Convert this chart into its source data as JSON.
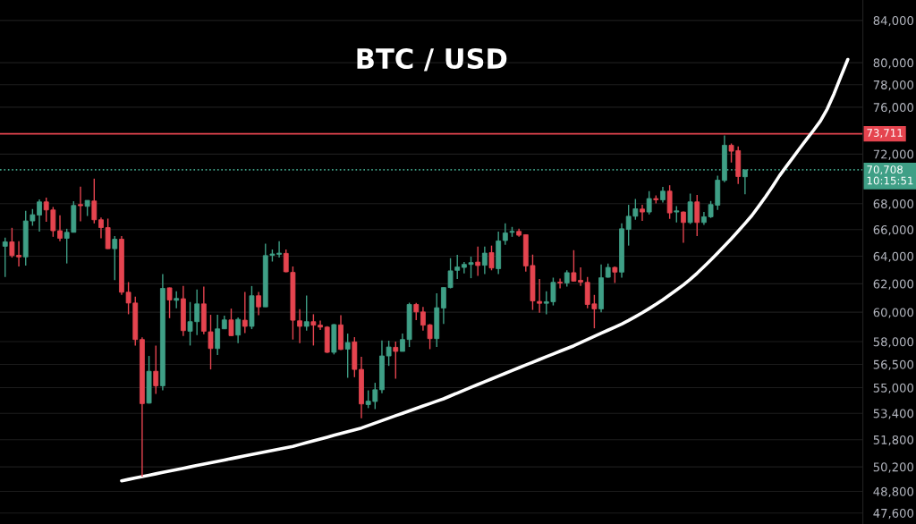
{
  "chart_data": {
    "type": "candlestick",
    "title": "BTC / USD",
    "categories": [
      null,
      null,
      null,
      null,
      null,
      null,
      null,
      null,
      null,
      null,
      null,
      null,
      null,
      null,
      null,
      null,
      null,
      null,
      null,
      null,
      null,
      null,
      null,
      null,
      null,
      null,
      null,
      null,
      null,
      null,
      null,
      null,
      null,
      null,
      null,
      null,
      null,
      null,
      null,
      null,
      null,
      null,
      null,
      null,
      null,
      null,
      null,
      null,
      null,
      null,
      null,
      null,
      null,
      null,
      null,
      null,
      null,
      null,
      null,
      null,
      null,
      null,
      null,
      null,
      null,
      null,
      null,
      null,
      null,
      null,
      null,
      null,
      null,
      null,
      null,
      null,
      null,
      null,
      null,
      null,
      null,
      null,
      null,
      null,
      null,
      null,
      null,
      null,
      null,
      null,
      null,
      null,
      null,
      null,
      null,
      null,
      null,
      null,
      null,
      null,
      null,
      null,
      null,
      null,
      null,
      null,
      null,
      null,
      null,
      null,
      null,
      null,
      null,
      null,
      null,
      null,
      null,
      null,
      null,
      null,
      null,
      null,
      null,
      null
    ],
    "ohlc": [
      [
        64740,
        65390,
        62490,
        65070
      ],
      [
        65070,
        66130,
        63900,
        64050
      ],
      [
        64070,
        65120,
        63250,
        63950
      ],
      [
        63950,
        67440,
        63320,
        66660
      ],
      [
        66660,
        67580,
        66290,
        67140
      ],
      [
        67110,
        68330,
        65840,
        68140
      ],
      [
        68140,
        68470,
        66590,
        67510
      ],
      [
        67510,
        67740,
        65450,
        65910
      ],
      [
        65910,
        67090,
        65120,
        65340
      ],
      [
        65340,
        66060,
        63470,
        65790
      ],
      [
        65790,
        68190,
        65790,
        67860
      ],
      [
        67930,
        69340,
        66630,
        67840
      ],
      [
        67790,
        68260,
        67040,
        68260
      ],
      [
        68210,
        69990,
        66470,
        66750
      ],
      [
        66750,
        66930,
        65340,
        66150
      ],
      [
        66150,
        66840,
        64540,
        64560
      ],
      [
        64560,
        65500,
        62270,
        65270
      ],
      [
        65270,
        65500,
        61210,
        61400
      ],
      [
        61400,
        62120,
        59860,
        60640
      ],
      [
        60640,
        61080,
        57740,
        58140
      ],
      [
        58140,
        58280,
        49640,
        54000
      ],
      [
        54030,
        57050,
        54000,
        56050
      ],
      [
        56050,
        57740,
        54610,
        55120
      ],
      [
        55120,
        62700,
        54830,
        61670
      ],
      [
        61710,
        61730,
        59590,
        60850
      ],
      [
        60830,
        61460,
        60270,
        60960
      ],
      [
        60940,
        61840,
        58380,
        58740
      ],
      [
        58700,
        60710,
        57740,
        59350
      ],
      [
        59350,
        61590,
        58440,
        60580
      ],
      [
        60580,
        61800,
        58500,
        58700
      ],
      [
        58660,
        59820,
        56170,
        57540
      ],
      [
        57540,
        59820,
        57110,
        58860
      ],
      [
        58860,
        59760,
        58840,
        59470
      ],
      [
        59470,
        60250,
        58380,
        58400
      ],
      [
        58440,
        59640,
        57900,
        59510
      ],
      [
        59450,
        61420,
        58580,
        59030
      ],
      [
        59030,
        61840,
        58840,
        61150
      ],
      [
        61150,
        61420,
        59800,
        60370
      ],
      [
        60370,
        64940,
        60370,
        64050
      ],
      [
        64070,
        64500,
        63610,
        64170
      ],
      [
        64140,
        65120,
        63900,
        64230
      ],
      [
        64210,
        64500,
        62820,
        62860
      ],
      [
        62820,
        63250,
        58140,
        59450
      ],
      [
        59410,
        60210,
        57900,
        59030
      ],
      [
        59030,
        61170,
        58740,
        59350
      ],
      [
        59350,
        59860,
        57740,
        59110
      ],
      [
        59110,
        59430,
        58780,
        58980
      ],
      [
        58980,
        59050,
        57250,
        57290
      ],
      [
        57290,
        59190,
        57150,
        59150
      ],
      [
        59130,
        59800,
        57440,
        57480
      ],
      [
        57500,
        58540,
        55630,
        57940
      ],
      [
        57980,
        58300,
        55670,
        56170
      ],
      [
        56170,
        56990,
        53100,
        53980
      ],
      [
        53940,
        54830,
        53720,
        54150
      ],
      [
        54130,
        55310,
        53660,
        54870
      ],
      [
        54870,
        58080,
        54650,
        57050
      ],
      [
        57050,
        58060,
        56400,
        57640
      ],
      [
        57620,
        58000,
        55570,
        57350
      ],
      [
        57350,
        58540,
        57350,
        58140
      ],
      [
        58140,
        60660,
        57640,
        60540
      ],
      [
        60540,
        60640,
        59450,
        60020
      ],
      [
        60020,
        60370,
        58740,
        59110
      ],
      [
        59130,
        59190,
        57500,
        58200
      ],
      [
        58200,
        61320,
        57640,
        60310
      ],
      [
        60290,
        61730,
        59190,
        61730
      ],
      [
        61730,
        63860,
        61670,
        62930
      ],
      [
        62970,
        64100,
        62340,
        63210
      ],
      [
        63180,
        63570,
        62750,
        63400
      ],
      [
        63400,
        63970,
        62400,
        63530
      ],
      [
        63570,
        64720,
        62570,
        63320
      ],
      [
        63340,
        64720,
        62700,
        64230
      ],
      [
        64270,
        64790,
        62970,
        63140
      ],
      [
        63090,
        65840,
        62700,
        65140
      ],
      [
        65170,
        66470,
        64850,
        65740
      ],
      [
        65790,
        66200,
        65450,
        65860
      ],
      [
        65860,
        66060,
        65450,
        65570
      ],
      [
        65610,
        65610,
        62880,
        63290
      ],
      [
        63320,
        64120,
        60160,
        60790
      ],
      [
        60750,
        62340,
        59960,
        60620
      ],
      [
        60620,
        61460,
        59860,
        60730
      ],
      [
        60730,
        62440,
        60470,
        62100
      ],
      [
        62120,
        62380,
        61670,
        62060
      ],
      [
        62060,
        62970,
        61800,
        62800
      ],
      [
        62800,
        64450,
        62160,
        62190
      ],
      [
        62250,
        63180,
        61840,
        62120
      ],
      [
        62100,
        62490,
        60270,
        60540
      ],
      [
        60580,
        61210,
        58900,
        60230
      ],
      [
        60230,
        63400,
        60000,
        62430
      ],
      [
        62470,
        63470,
        62440,
        63180
      ],
      [
        63180,
        63250,
        62060,
        62840
      ],
      [
        62840,
        66470,
        62440,
        66060
      ],
      [
        66010,
        67910,
        64790,
        67020
      ],
      [
        67020,
        68370,
        66750,
        67600
      ],
      [
        67580,
        67910,
        66660,
        67350
      ],
      [
        67350,
        68990,
        67160,
        68400
      ],
      [
        68400,
        68650,
        68020,
        68300
      ],
      [
        68300,
        69320,
        68090,
        68990
      ],
      [
        68990,
        69460,
        66820,
        67280
      ],
      [
        67350,
        67810,
        66540,
        67440
      ],
      [
        67350,
        67390,
        65010,
        66540
      ],
      [
        66540,
        68790,
        66420,
        68140
      ],
      [
        68140,
        68680,
        65500,
        66540
      ],
      [
        66540,
        67350,
        66350,
        66980
      ],
      [
        66980,
        68210,
        66890,
        67930
      ],
      [
        67880,
        70230,
        67510,
        69870
      ],
      [
        69850,
        73570,
        69700,
        72740
      ],
      [
        72740,
        72890,
        71310,
        72240
      ],
      [
        72290,
        72640,
        69560,
        70160
      ],
      [
        70140,
        70710,
        68750,
        70708
      ],
      null,
      null,
      null,
      null,
      null,
      null,
      null,
      null,
      null,
      null,
      null,
      null,
      null,
      null,
      null
    ],
    "colors": [
      "#3f9f86",
      "#e5444f",
      "#e5444f",
      "#3f9f86",
      "#3f9f86",
      "#3f9f86",
      "#e5444f",
      "#e5444f",
      "#e5444f",
      "#3f9f86",
      "#3f9f86",
      "#e5444f",
      "#3f9f86",
      "#e5444f",
      "#e5444f",
      "#e5444f",
      "#3f9f86",
      "#e5444f",
      "#e5444f",
      "#e5444f",
      "#e5444f",
      "#3f9f86",
      "#e5444f",
      "#3f9f86",
      "#e5444f",
      "#3f9f86",
      "#e5444f",
      "#3f9f86",
      "#3f9f86",
      "#e5444f",
      "#e5444f",
      "#3f9f86",
      "#3f9f86",
      "#e5444f",
      "#3f9f86",
      "#e5444f",
      "#3f9f86",
      "#e5444f",
      "#3f9f86",
      "#3f9f86",
      "#3f9f86",
      "#e5444f",
      "#e5444f",
      "#e5444f",
      "#3f9f86",
      "#e5444f",
      "#e5444f",
      "#e5444f",
      "#3f9f86",
      "#e5444f",
      "#3f9f86",
      "#e5444f",
      "#e5444f",
      "#3f9f86",
      "#3f9f86",
      "#3f9f86",
      "#3f9f86",
      "#e5444f",
      "#3f9f86",
      "#3f9f86",
      "#e5444f",
      "#e5444f",
      "#e5444f",
      "#3f9f86",
      "#3f9f86",
      "#3f9f86",
      "#3f9f86",
      "#3f9f86",
      "#3f9f86",
      "#e5444f",
      "#3f9f86",
      "#e5444f",
      "#3f9f86",
      "#3f9f86",
      "#3f9f86",
      "#e5444f",
      "#e5444f",
      "#e5444f",
      "#e5444f",
      "#3f9f86",
      "#3f9f86",
      "#e5444f",
      "#3f9f86",
      "#e5444f",
      "#e5444f",
      "#e5444f",
      "#e5444f",
      "#3f9f86",
      "#3f9f86",
      "#e5444f",
      "#3f9f86",
      "#3f9f86",
      "#3f9f86",
      "#e5444f",
      "#3f9f86",
      "#e5444f",
      "#3f9f86",
      "#e5444f",
      "#3f9f86",
      "#e5444f",
      "#3f9f86",
      "#e5444f",
      "#3f9f86",
      "#3f9f86",
      "#3f9f86",
      "#3f9f86",
      "#e5444f",
      "#e5444f",
      "#3f9f86",
      null,
      null,
      null,
      null,
      null,
      null,
      null,
      null,
      null,
      null,
      null,
      null,
      null,
      null,
      null
    ],
    "series": [
      {
        "type": "line",
        "color": "#ffffff",
        "values": [
          null,
          null,
          null,
          null,
          null,
          null,
          null,
          null,
          null,
          null,
          null,
          null,
          null,
          null,
          null,
          null,
          null,
          49400,
          49480,
          49560,
          49640,
          49720,
          49800,
          49880,
          49960,
          50040,
          50120,
          50200,
          50280,
          50360,
          50440,
          50520,
          50600,
          50680,
          50760,
          50840,
          50920,
          51000,
          51080,
          51160,
          51240,
          51320,
          51400,
          51510,
          51620,
          51730,
          51840,
          51950,
          52060,
          52170,
          52280,
          52390,
          52500,
          52650,
          52800,
          52950,
          53100,
          53250,
          53400,
          53550,
          53700,
          53850,
          54000,
          54150,
          54300,
          54480,
          54660,
          54840,
          55020,
          55200,
          55380,
          55560,
          55740,
          55920,
          56100,
          56280,
          56460,
          56640,
          56820,
          57000,
          57180,
          57360,
          57540,
          57720,
          57930,
          58140,
          58350,
          58560,
          58770,
          58980,
          59190,
          59430,
          59690,
          59960,
          60250,
          60550,
          60870,
          61210,
          61560,
          61920,
          62320,
          62760,
          63230,
          63720,
          64230,
          64760,
          65310,
          65880,
          66470,
          67080,
          67800,
          68550,
          69350,
          70200,
          70960,
          71720,
          72490,
          73250,
          74000,
          74800,
          75850,
          77200,
          78750,
          80300
        ]
      }
    ],
    "ylim": [
      47000,
      86000
    ],
    "yticks": [
      {
        "value": 47600,
        "label": "47,600"
      },
      {
        "value": 48800,
        "label": "48,800"
      },
      {
        "value": 50200,
        "label": "50,200"
      },
      {
        "value": 51800,
        "label": "51,800"
      },
      {
        "value": 53400,
        "label": "53,400"
      },
      {
        "value": 55000,
        "label": "55,000"
      },
      {
        "value": 56500,
        "label": "56,500"
      },
      {
        "value": 58000,
        "label": "58,000"
      },
      {
        "value": 60000,
        "label": "60,000"
      },
      {
        "value": 62000,
        "label": "62,000"
      },
      {
        "value": 64000,
        "label": "64,000"
      },
      {
        "value": 66000,
        "label": "66,000"
      },
      {
        "value": 68000,
        "label": "68,000"
      },
      {
        "value": 72000,
        "label": "72,000"
      },
      {
        "value": 76000,
        "label": "76,000"
      },
      {
        "value": 78000,
        "label": "78,000"
      },
      {
        "value": 80000,
        "label": "80,000"
      },
      {
        "value": 84000,
        "label": "84,000"
      }
    ],
    "log": true,
    "grid": "y",
    "tick_labels": "y",
    "ref_lines": [
      {
        "axis": "y",
        "value": 73711,
        "label": "73,711",
        "color": "#e5444f",
        "line_style": "solid"
      },
      {
        "axis": "y",
        "value": 70708,
        "label": "70,708\n10:15:51",
        "color": "#3f9f86",
        "line_style": "dotted"
      }
    ]
  }
}
